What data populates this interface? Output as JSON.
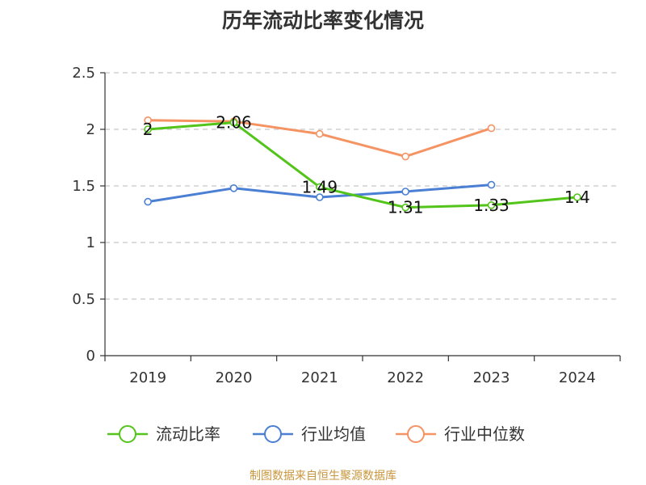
{
  "chart_data": {
    "type": "line",
    "title": "历年流动比率变化情况",
    "categories": [
      "2019",
      "2020",
      "2021",
      "2022",
      "2023",
      "2024"
    ],
    "ylim": [
      0,
      2.5
    ],
    "yticks": [
      "0",
      "0.5",
      "1",
      "1.5",
      "2",
      "2.5"
    ],
    "grid": true,
    "legend_position": "bottom",
    "series": [
      {
        "name": "流动比率",
        "color": "#52c41a",
        "values": [
          2.0,
          2.06,
          1.49,
          1.31,
          1.33,
          1.4
        ],
        "labels": [
          "2",
          "2.06",
          "1.49",
          "1.31",
          "1.33",
          "1.4"
        ]
      },
      {
        "name": "行业均值",
        "color": "#4a7fd4",
        "values": [
          1.36,
          1.48,
          1.4,
          1.45,
          1.51,
          null
        ]
      },
      {
        "name": "行业中位数",
        "color": "#f59363",
        "values": [
          2.08,
          2.07,
          1.96,
          1.76,
          2.01,
          null
        ]
      }
    ]
  },
  "footer": {
    "source": "制图数据来自恒生聚源数据库"
  }
}
